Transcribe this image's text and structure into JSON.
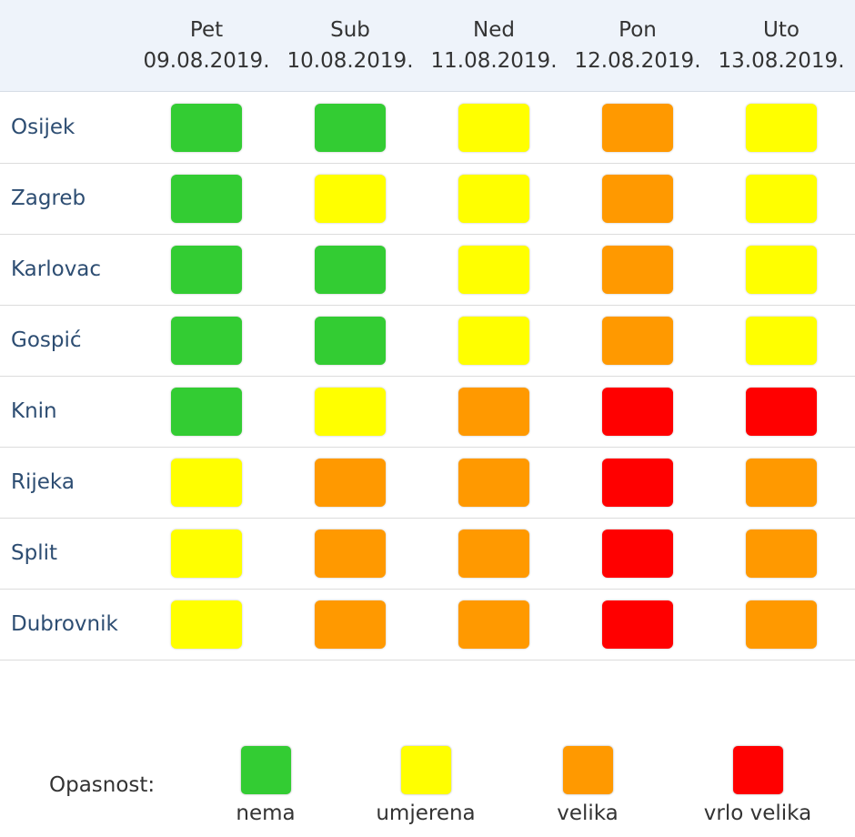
{
  "chart_data": {
    "type": "heatmap",
    "days": [
      {
        "day": "Pet",
        "date": "09.08.2019."
      },
      {
        "day": "Sub",
        "date": "10.08.2019."
      },
      {
        "day": "Ned",
        "date": "11.08.2019."
      },
      {
        "day": "Pon",
        "date": "12.08.2019."
      },
      {
        "day": "Uto",
        "date": "13.08.2019."
      }
    ],
    "rows": [
      {
        "city": "Osijek",
        "levels": [
          "nema",
          "nema",
          "umjerena",
          "velika",
          "umjerena"
        ]
      },
      {
        "city": "Zagreb",
        "levels": [
          "nema",
          "umjerena",
          "umjerena",
          "velika",
          "umjerena"
        ]
      },
      {
        "city": "Karlovac",
        "levels": [
          "nema",
          "nema",
          "umjerena",
          "velika",
          "umjerena"
        ]
      },
      {
        "city": "Gospić",
        "levels": [
          "nema",
          "nema",
          "umjerena",
          "velika",
          "umjerena"
        ]
      },
      {
        "city": "Knin",
        "levels": [
          "nema",
          "umjerena",
          "velika",
          "vrlo velika",
          "vrlo velika"
        ]
      },
      {
        "city": "Rijeka",
        "levels": [
          "umjerena",
          "velika",
          "velika",
          "vrlo velika",
          "velika"
        ]
      },
      {
        "city": "Split",
        "levels": [
          "umjerena",
          "velika",
          "velika",
          "vrlo velika",
          "velika"
        ]
      },
      {
        "city": "Dubrovnik",
        "levels": [
          "umjerena",
          "velika",
          "velika",
          "vrlo velika",
          "velika"
        ]
      }
    ],
    "legend": {
      "label": "Opasnost:",
      "items": [
        {
          "name": "nema",
          "color": "#33cc33"
        },
        {
          "name": "umjerena",
          "color": "#ffff00"
        },
        {
          "name": "velika",
          "color": "#ff9900"
        },
        {
          "name": "vrlo velika",
          "color": "#ff0000"
        }
      ]
    }
  }
}
